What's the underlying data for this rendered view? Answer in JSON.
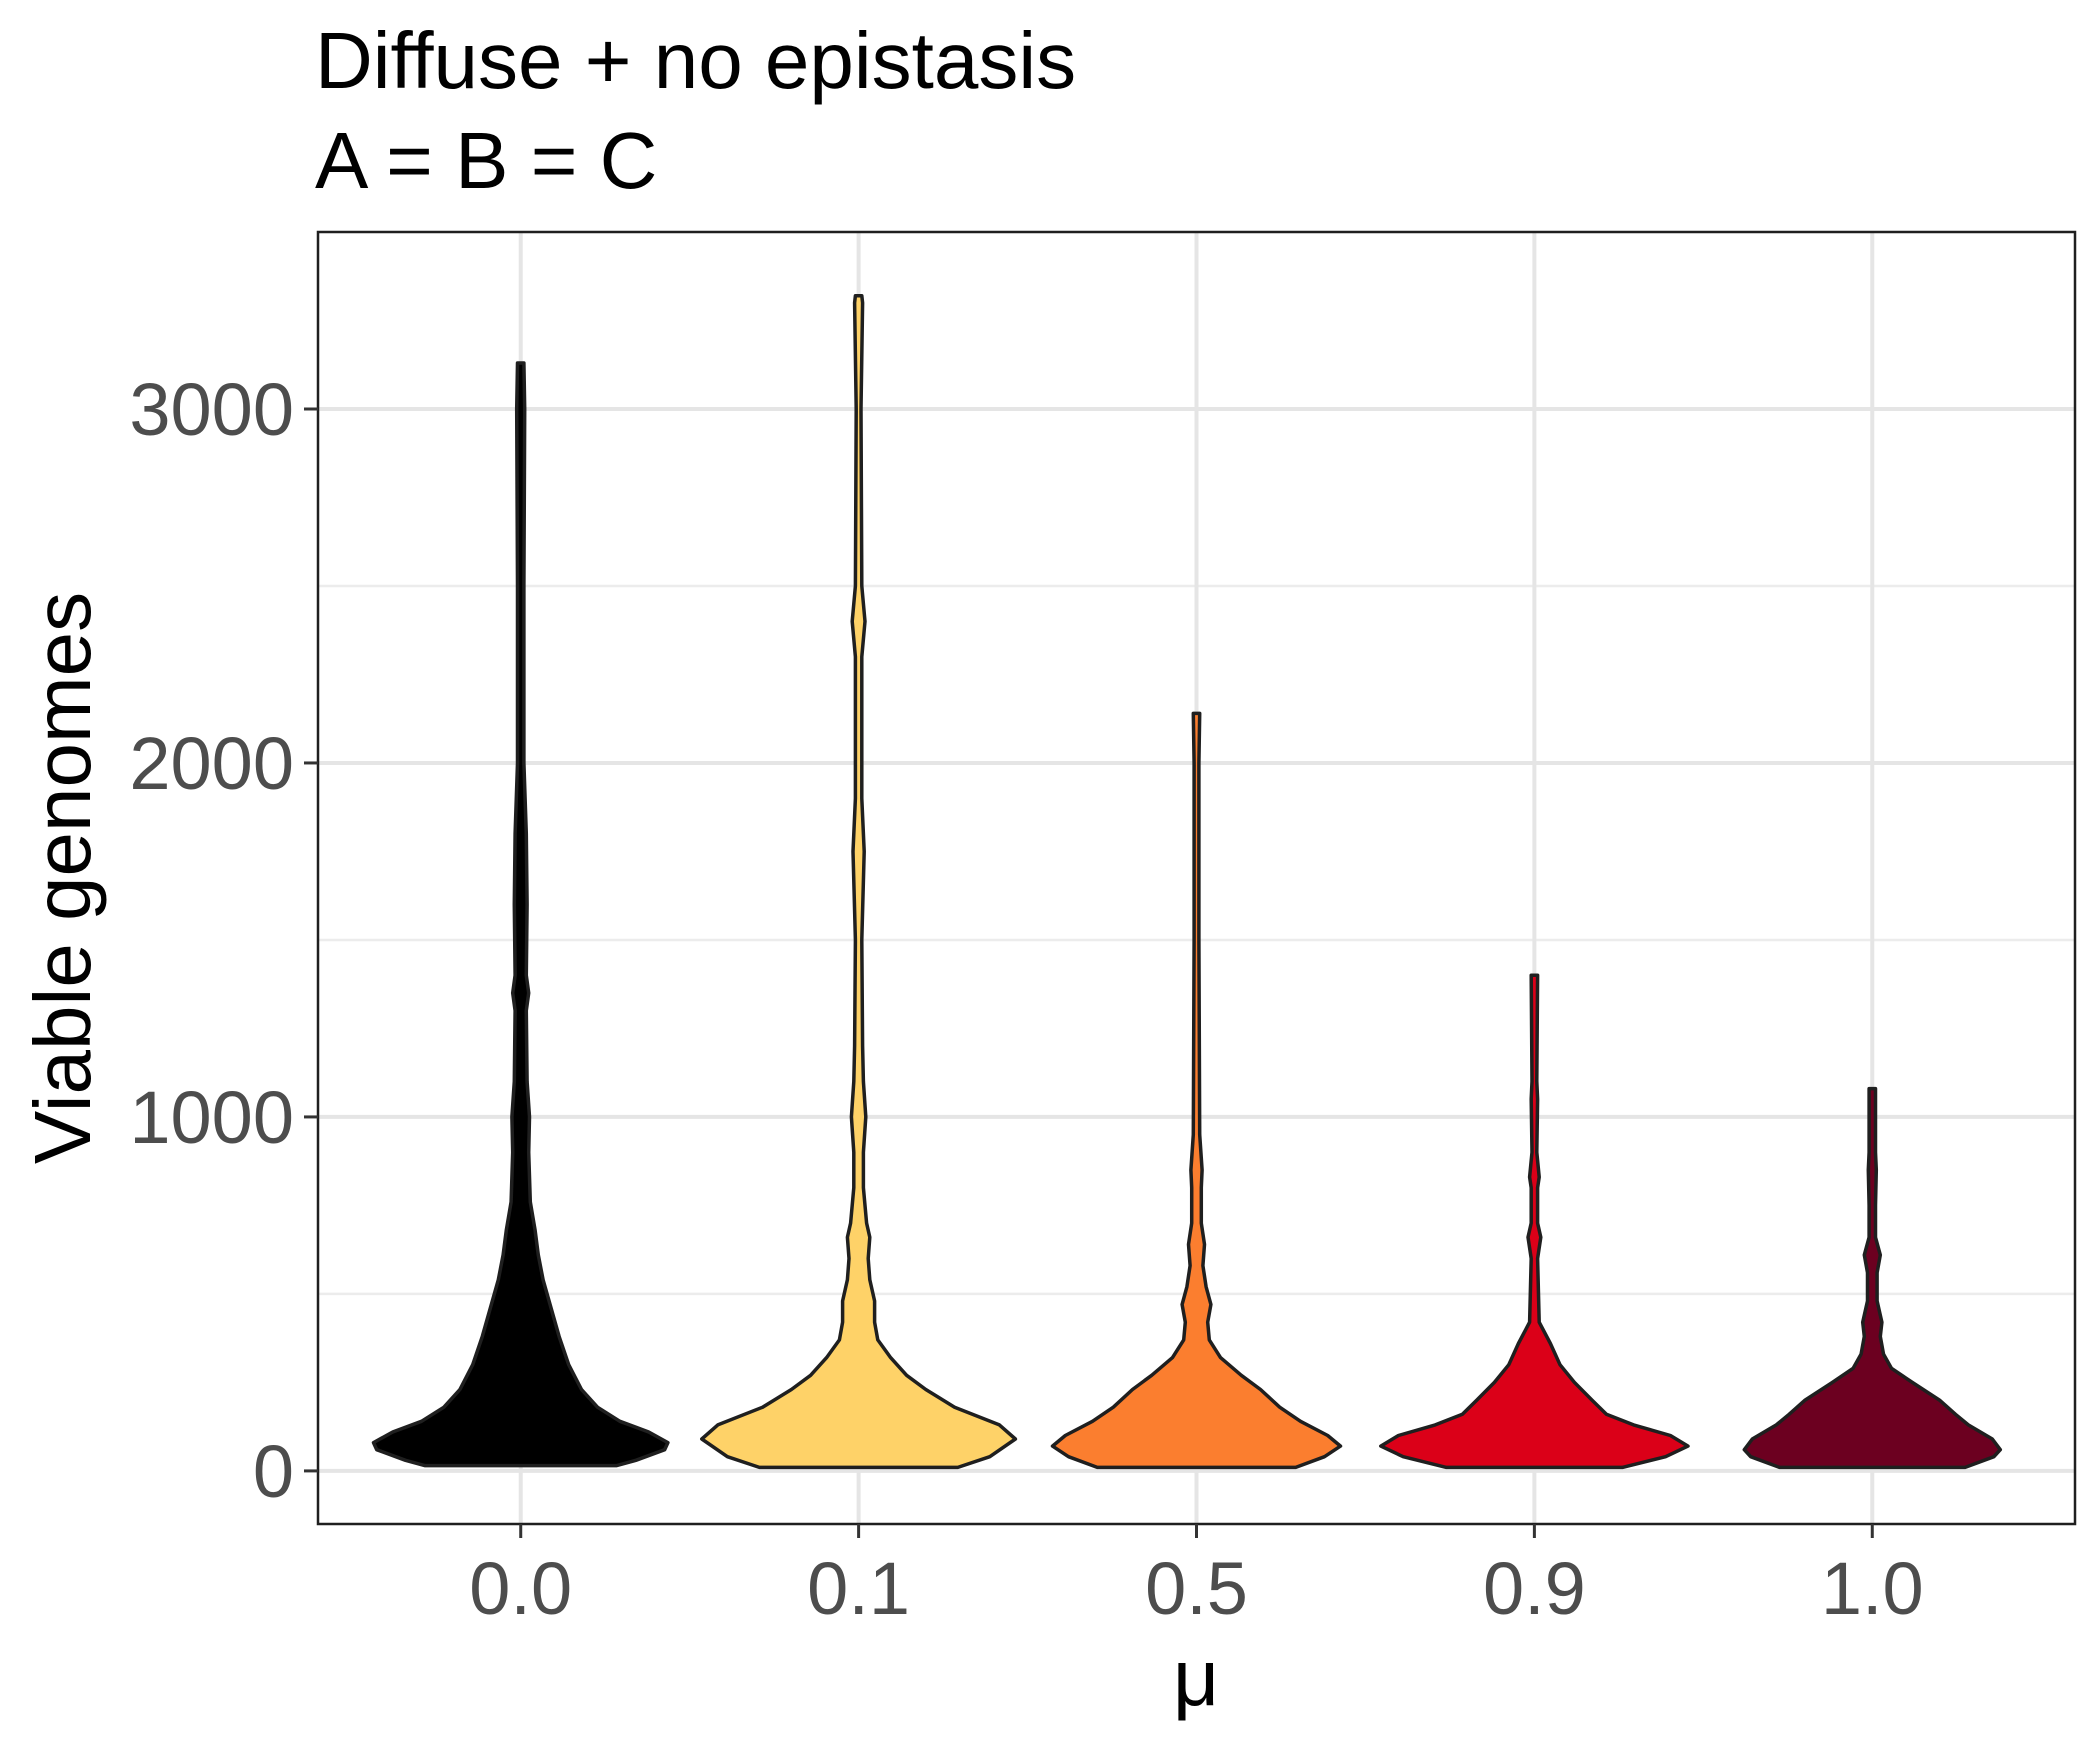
{
  "chart_data": {
    "type": "violin",
    "title": "Diffuse + no epistasis",
    "subtitle": "A = B = C",
    "xlabel": "μ",
    "ylabel": "Viable genomes",
    "categories": [
      "0.0",
      "0.1",
      "0.5",
      "0.9",
      "1.0"
    ],
    "ylim": [
      -150,
      3500
    ],
    "yticks": [
      0,
      1000,
      2000,
      3000
    ],
    "ytick_labels": [
      "0",
      "1000",
      "2000",
      "3000"
    ],
    "grid": true,
    "legend": "none",
    "series": [
      {
        "category": "0.0",
        "color": "#000000",
        "min": 15,
        "max": 3130,
        "profile": [
          [
            15,
            0.6
          ],
          [
            30,
            0.72
          ],
          [
            60,
            0.9
          ],
          [
            80,
            0.92
          ],
          [
            110,
            0.8
          ],
          [
            140,
            0.62
          ],
          [
            180,
            0.48
          ],
          [
            230,
            0.38
          ],
          [
            300,
            0.3
          ],
          [
            380,
            0.24
          ],
          [
            460,
            0.19
          ],
          [
            540,
            0.14
          ],
          [
            610,
            0.11
          ],
          [
            680,
            0.09
          ],
          [
            760,
            0.06
          ],
          [
            900,
            0.05
          ],
          [
            1000,
            0.055
          ],
          [
            1100,
            0.04
          ],
          [
            1300,
            0.035
          ],
          [
            1350,
            0.05
          ],
          [
            1400,
            0.035
          ],
          [
            1600,
            0.04
          ],
          [
            1800,
            0.035
          ],
          [
            2000,
            0.02
          ],
          [
            2500,
            0.02
          ],
          [
            3000,
            0.025
          ],
          [
            3130,
            0.02
          ]
        ]
      },
      {
        "category": "0.1",
        "color": "#FED268",
        "min": 10,
        "max": 3320,
        "profile": [
          [
            10,
            0.62
          ],
          [
            40,
            0.82
          ],
          [
            90,
            0.98
          ],
          [
            130,
            0.88
          ],
          [
            180,
            0.6
          ],
          [
            230,
            0.42
          ],
          [
            270,
            0.3
          ],
          [
            320,
            0.2
          ],
          [
            370,
            0.12
          ],
          [
            420,
            0.1
          ],
          [
            480,
            0.1
          ],
          [
            540,
            0.07
          ],
          [
            600,
            0.06
          ],
          [
            660,
            0.07
          ],
          [
            700,
            0.05
          ],
          [
            800,
            0.03
          ],
          [
            900,
            0.03
          ],
          [
            1000,
            0.045
          ],
          [
            1100,
            0.03
          ],
          [
            1200,
            0.025
          ],
          [
            1500,
            0.02
          ],
          [
            1750,
            0.035
          ],
          [
            1900,
            0.02
          ],
          [
            2300,
            0.02
          ],
          [
            2400,
            0.04
          ],
          [
            2500,
            0.02
          ],
          [
            3000,
            0.015
          ],
          [
            3300,
            0.025
          ],
          [
            3320,
            0.02
          ]
        ]
      },
      {
        "category": "0.5",
        "color": "#FB7E2F",
        "min": 10,
        "max": 2140,
        "profile": [
          [
            10,
            0.62
          ],
          [
            40,
            0.8
          ],
          [
            70,
            0.9
          ],
          [
            100,
            0.82
          ],
          [
            140,
            0.65
          ],
          [
            180,
            0.52
          ],
          [
            230,
            0.4
          ],
          [
            270,
            0.28
          ],
          [
            320,
            0.15
          ],
          [
            370,
            0.08
          ],
          [
            420,
            0.07
          ],
          [
            470,
            0.09
          ],
          [
            520,
            0.06
          ],
          [
            580,
            0.04
          ],
          [
            640,
            0.05
          ],
          [
            700,
            0.03
          ],
          [
            800,
            0.03
          ],
          [
            850,
            0.035
          ],
          [
            950,
            0.02
          ],
          [
            1500,
            0.015
          ],
          [
            2000,
            0.015
          ],
          [
            2140,
            0.02
          ]
        ]
      },
      {
        "category": "0.9",
        "color": "#DB0018",
        "min": 10,
        "max": 1400,
        "profile": [
          [
            10,
            0.55
          ],
          [
            40,
            0.82
          ],
          [
            70,
            0.96
          ],
          [
            100,
            0.85
          ],
          [
            130,
            0.62
          ],
          [
            160,
            0.45
          ],
          [
            200,
            0.36
          ],
          [
            250,
            0.25
          ],
          [
            300,
            0.16
          ],
          [
            360,
            0.1
          ],
          [
            420,
            0.03
          ],
          [
            600,
            0.02
          ],
          [
            660,
            0.04
          ],
          [
            700,
            0.02
          ],
          [
            800,
            0.02
          ],
          [
            830,
            0.03
          ],
          [
            900,
            0.015
          ],
          [
            1050,
            0.02
          ],
          [
            1100,
            0.015
          ],
          [
            1400,
            0.02
          ]
        ]
      },
      {
        "category": "1.0",
        "color": "#6C0020",
        "min": 10,
        "max": 1080,
        "profile": [
          [
            10,
            0.58
          ],
          [
            40,
            0.76
          ],
          [
            60,
            0.8
          ],
          [
            90,
            0.75
          ],
          [
            130,
            0.6
          ],
          [
            160,
            0.52
          ],
          [
            200,
            0.42
          ],
          [
            250,
            0.25
          ],
          [
            290,
            0.12
          ],
          [
            330,
            0.07
          ],
          [
            380,
            0.05
          ],
          [
            420,
            0.06
          ],
          [
            480,
            0.03
          ],
          [
            560,
            0.03
          ],
          [
            610,
            0.05
          ],
          [
            660,
            0.02
          ],
          [
            750,
            0.02
          ],
          [
            850,
            0.025
          ],
          [
            900,
            0.02
          ],
          [
            1000,
            0.02
          ],
          [
            1080,
            0.02
          ]
        ]
      }
    ]
  }
}
